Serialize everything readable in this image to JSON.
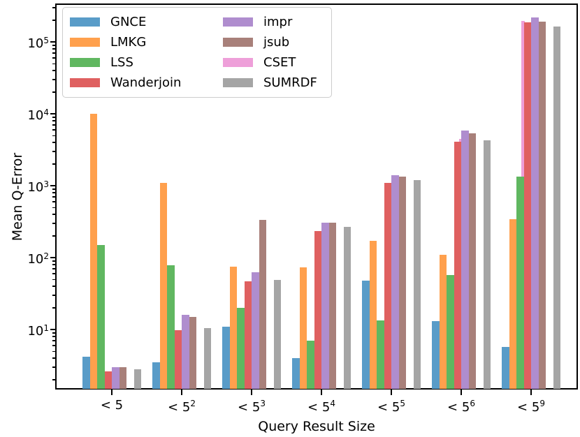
{
  "chart_data": {
    "type": "bar",
    "title": "",
    "xlabel": "Query Result Size",
    "ylabel": "Mean Q-Error",
    "y_scale": "log",
    "ylim": [
      1.5,
      330000
    ],
    "grid": false,
    "legend_position": "upper-left",
    "legend_columns": 2,
    "categories": [
      "< 5",
      "< 5^2",
      "< 5^3",
      "< 5^4",
      "< 5^5",
      "< 5^6",
      "< 5^9"
    ],
    "categories_display": [
      {
        "base": "< 5",
        "sup": ""
      },
      {
        "base": "< 5",
        "sup": "2"
      },
      {
        "base": "< 5",
        "sup": "3"
      },
      {
        "base": "< 5",
        "sup": "4"
      },
      {
        "base": "< 5",
        "sup": "5"
      },
      {
        "base": "< 5",
        "sup": "6"
      },
      {
        "base": "< 5",
        "sup": "9"
      }
    ],
    "y_ticks": [
      "10^1",
      "10^2",
      "10^3",
      "10^4",
      "10^5"
    ],
    "series": [
      {
        "name": "GNCE",
        "color": "#599CC8",
        "values": [
          4.2,
          3.5,
          11,
          4,
          48,
          13,
          5.7
        ]
      },
      {
        "name": "LMKG",
        "color": "#FFA04D",
        "values": [
          10000,
          1100,
          75,
          73,
          170,
          110,
          345
        ]
      },
      {
        "name": "LSS",
        "color": "#60B760",
        "values": [
          150,
          78,
          20,
          7,
          13.5,
          57,
          1350
        ]
      },
      {
        "name": "Wanderjoin",
        "color": "#DF6060",
        "values": [
          2.6,
          9.8,
          47,
          235,
          1100,
          4100,
          185000
        ]
      },
      {
        "name": "impr",
        "color": "#AF8DCE",
        "values": [
          3,
          16,
          62,
          305,
          1400,
          5900,
          220000
        ]
      },
      {
        "name": "jsub",
        "color": "#A8807A",
        "values": [
          3,
          15,
          335,
          305,
          1350,
          5300,
          190000
        ]
      },
      {
        "name": "CSET",
        "color": "#EE9FD9",
        "values": [
          null,
          null,
          null,
          null,
          null,
          4500,
          195000
        ],
        "mostly_hidden_behind_other_bars": true
      },
      {
        "name": "SUMRDF",
        "color": "#A5A5A5",
        "values": [
          2.8,
          10.5,
          49,
          265,
          1200,
          4300,
          165000
        ]
      }
    ]
  }
}
